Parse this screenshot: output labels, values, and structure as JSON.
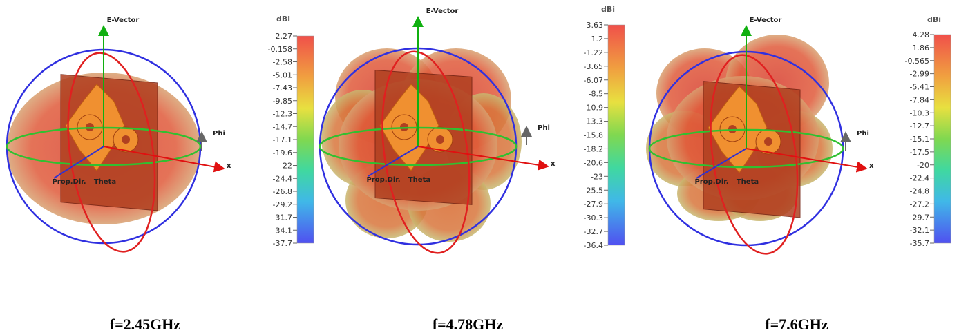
{
  "panels": [
    {
      "caption": "f=2.45GHz",
      "e_vector": "E-Vector",
      "phi": "Phi",
      "x_axis": "x",
      "prop_dir": "Prop.Dir.",
      "theta": "Theta",
      "colorbar": {
        "unit": "dBi",
        "ticks": [
          "2.27",
          "-0.158",
          "-2.58",
          "-5.01",
          "-7.43",
          "-9.85",
          "-12.3",
          "-14.7",
          "-17.1",
          "-19.6",
          "-22",
          "-24.4",
          "-26.8",
          "-29.2",
          "-31.7",
          "-34.1",
          "-37.7"
        ]
      }
    },
    {
      "caption": "f=4.78GHz",
      "e_vector": "E-Vector",
      "phi": "Phi",
      "x_axis": "x",
      "prop_dir": "Prop.Dir.",
      "theta": "Theta",
      "colorbar": {
        "unit": "dBi",
        "ticks": [
          "3.63",
          "1.2",
          "-1.22",
          "-3.65",
          "-6.07",
          "-8.5",
          "-10.9",
          "-13.3",
          "-15.8",
          "-18.2",
          "-20.6",
          "-23",
          "-25.5",
          "-27.9",
          "-30.3",
          "-32.7",
          "-36.4"
        ]
      }
    },
    {
      "caption": "f=7.6GHz",
      "e_vector": "E-Vector",
      "phi": "Phi",
      "x_axis": "x",
      "prop_dir": "Prop.Dir.",
      "theta": "Theta",
      "colorbar": {
        "unit": "dBi",
        "ticks": [
          "4.28",
          "1.86",
          "-0.565",
          "-2.99",
          "-5.41",
          "-7.84",
          "-10.3",
          "-12.7",
          "-15.1",
          "-17.5",
          "-20",
          "-22.4",
          "-24.8",
          "-27.2",
          "-29.7",
          "-32.1",
          "-35.7"
        ]
      }
    }
  ]
}
